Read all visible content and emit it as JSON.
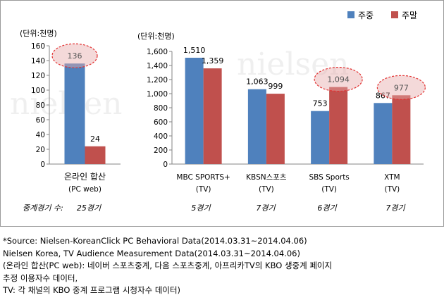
{
  "chart_data": [
    {
      "type": "bar",
      "unit_label": "(단위:천명)",
      "categories": [
        "온라인 합산"
      ],
      "category_sub": [
        "(PC web)"
      ],
      "games": [
        "25경기"
      ],
      "series": [
        {
          "name": "주중",
          "values": [
            136
          ]
        },
        {
          "name": "주말",
          "values": [
            24
          ]
        }
      ],
      "ylim": [
        0,
        160
      ],
      "yticks": [
        "0",
        "20",
        "40",
        "60",
        "80",
        "100",
        "120",
        "140",
        "160"
      ],
      "highlights": [
        {
          "series": 0,
          "category": 0
        }
      ]
    },
    {
      "type": "bar",
      "unit_label": "(단위:천명)",
      "categories": [
        "MBC SPORTS+",
        "KBSN스포츠",
        "SBS Sports",
        "XTM"
      ],
      "category_sub": [
        "(TV)",
        "(TV)",
        "(TV)",
        "(TV)"
      ],
      "games": [
        "5경기",
        "7경기",
        "6경기",
        "7경기"
      ],
      "series": [
        {
          "name": "주중",
          "values": [
            1510,
            1063,
            753,
            867
          ]
        },
        {
          "name": "주말",
          "values": [
            1359,
            999,
            1094,
            977
          ]
        }
      ],
      "value_labels": [
        [
          "1,510",
          "1,063",
          "753",
          "867"
        ],
        [
          "1,359",
          "999",
          "1,094",
          "977"
        ]
      ],
      "ylim": [
        0,
        1600
      ],
      "yticks": [
        "0",
        "200",
        "400",
        "600",
        "800",
        "1,000",
        "1,200",
        "1,400",
        "1,600"
      ],
      "highlights": [
        {
          "series": 1,
          "category": 2
        },
        {
          "series": 1,
          "category": 3
        }
      ]
    }
  ],
  "games_label": "중계경기 수:",
  "colors": {
    "weekday": "#4f81bd",
    "weekend": "#c0504d",
    "highlight": "#e23030"
  },
  "watermark": [
    "nielsen",
    "nielsen"
  ],
  "sources": [
    "*Source: Nielsen-KoreanClick  PC Behavioral Data(2014.03.31~2014.04.06)",
    "Nielsen Korea, TV Audience Measurement Data(2014.03.31~2014.04.06)",
    "(온라인 합산(PC web): 네이버 스포츠중계, 다음 스포츠중계, 아프리카TV의 KBO 생중계 페이지",
    "추정 이용자수 데이터,",
    "TV: 각 채널의 KBO 중계 프로그램 시청자수 데이터)"
  ]
}
